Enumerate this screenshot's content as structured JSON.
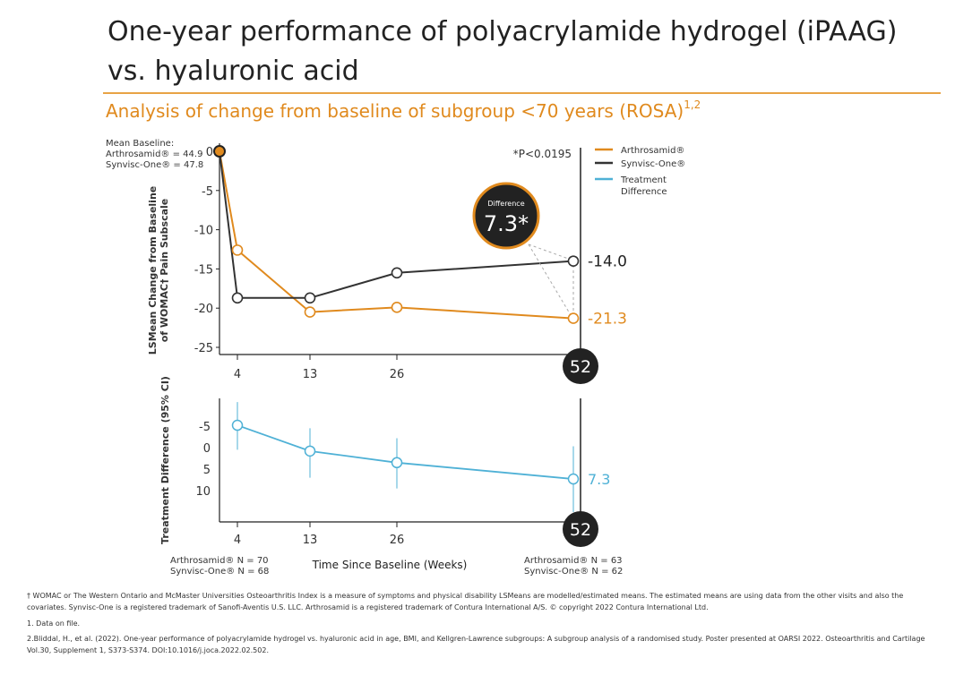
{
  "title": {
    "line1": "One-year performance of polyacrylamide hydrogel (iPAAG)",
    "line2": "vs. hyaluronic acid"
  },
  "subtitle": {
    "text": "Analysis of change from baseline of subgroup <70 years (ROSA)",
    "sup": "1,2"
  },
  "colors": {
    "arthrosamid": "#e08a1e",
    "synvisc": "#333333",
    "difference": "#4fb1d6",
    "rule": "#e8a345"
  },
  "chart_data": [
    {
      "type": "line",
      "ylabel_line1": "LSMean Change from Baseline",
      "ylabel_line2": "of WOMAC† Pain Subscale",
      "ylim": [
        -25,
        0
      ],
      "yticks": [
        "0",
        "-5",
        "-10",
        "-15",
        "-20",
        "-25"
      ],
      "ytick_values": [
        0,
        -5,
        -10,
        -15,
        -20,
        -25
      ],
      "x": [
        0,
        4,
        13,
        26,
        52
      ],
      "xticks": [
        "4",
        "13",
        "26",
        "52"
      ],
      "xtick_values": [
        4,
        13,
        26,
        52
      ],
      "baseline_title": "Mean Baseline:",
      "baseline_a": "Arthrosamid® = 44.9",
      "baseline_s": "Synvisc-One® = 47.8",
      "pvalue": "*P<0.0195",
      "difference_label": "Difference",
      "difference_value": "7.3*",
      "series": [
        {
          "name": "Arthrosamid®",
          "values": [
            0,
            -12.6,
            -20.5,
            -19.9,
            -21.3
          ],
          "end_label": "-21.3"
        },
        {
          "name": "Synvisc-One®",
          "values": [
            0,
            -18.7,
            -18.7,
            -15.5,
            -14.0
          ],
          "end_label": "-14.0"
        }
      ],
      "legend": [
        "Arthrosamid®",
        "Synvisc-One®",
        "Treatment Difference"
      ],
      "legend_placement": "top-right"
    },
    {
      "type": "line",
      "ylabel": "Treatment Difference (95% CI)",
      "ylim_top": -8,
      "ylim_bottom": 17,
      "yticks": [
        "-5",
        "0",
        "5",
        "10"
      ],
      "ytick_values": [
        -5,
        0,
        5,
        10
      ],
      "x": [
        4,
        13,
        26,
        52
      ],
      "xticks": [
        "4",
        "13",
        "26",
        "52"
      ],
      "xtick_values": [
        4,
        13,
        26,
        52
      ],
      "xlabel": "Time Since Baseline (Weeks)",
      "series": [
        {
          "name": "Treatment Difference",
          "values": [
            -5.2,
            0.8,
            3.5,
            7.3
          ],
          "ci_low": [
            -10.6,
            -4.5,
            -2.2,
            -0.3
          ],
          "ci_high": [
            0.5,
            7.0,
            9.5,
            15.0
          ],
          "end_label": "7.3"
        }
      ],
      "n_start_a": "Arthrosamid® N = 70",
      "n_start_s": "Synvisc-One® N = 68",
      "n_end_a": "Arthrosamid® N = 63",
      "n_end_s": "Synvisc-One® N = 62"
    }
  ],
  "footnotes": {
    "f1": "† WOMAC or The Western Ontario and McMaster Universities Osteoarthritis Index is a measure of symptoms and physical disability LSMeans are modelled/estimated means.  The estimated means are using data from the other visits and also the covariates. Synvisc-One is a registered trademark of Sanofi-Aventis U.S. LLC. Arthrosamid is a registered trademark of Contura International A/S. © copyright 2022 Contura International Ltd.",
    "f2": "1. Data on file.",
    "f3": "2.Bliddal, H., et al. (2022). One-year performance of polyacrylamide hydrogel vs. hyaluronic acid in age, BMI, and Kellgren-Lawrence subgroups: A subgroup analysis of a randomised study. Poster presented at OARSI 2022. Osteoarthritis and Cartilage Vol.30, Supplement 1, S373-S374. DOI:10.1016/j.joca.2022.02.502."
  }
}
